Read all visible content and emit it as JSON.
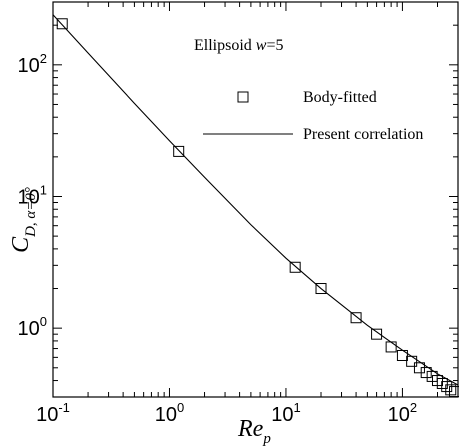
{
  "chart_data": {
    "type": "line",
    "x_scale": "log",
    "y_scale": "log",
    "xlim": [
      0.1,
      300
    ],
    "ylim": [
      0.3,
      300
    ],
    "annotation": {
      "text": "Ellipsoid ",
      "var": "w",
      "value": "=5"
    },
    "xlabel": {
      "main": "Re",
      "sub": "p"
    },
    "ylabel": {
      "main": "C",
      "sub": "D, α=0°"
    },
    "x_ticks": [
      {
        "value": 0.1,
        "base": "10",
        "exp": "-1"
      },
      {
        "value": 1,
        "base": "10",
        "exp": "0"
      },
      {
        "value": 10,
        "base": "10",
        "exp": "1"
      },
      {
        "value": 100,
        "base": "10",
        "exp": "2"
      }
    ],
    "y_ticks": [
      {
        "value": 1,
        "base": "10",
        "exp": "0"
      },
      {
        "value": 10,
        "base": "10",
        "exp": "1"
      },
      {
        "value": 100,
        "base": "10",
        "exp": "2"
      }
    ],
    "legend": {
      "position": "top-right"
    },
    "series": [
      {
        "name": "Body-fitted",
        "kind": "markers",
        "marker": "open-square",
        "points": [
          [
            0.12,
            205
          ],
          [
            1.2,
            22
          ],
          [
            12,
            2.9
          ],
          [
            20,
            2.0
          ],
          [
            40,
            1.2
          ],
          [
            60,
            0.9
          ],
          [
            80,
            0.72
          ],
          [
            100,
            0.62
          ],
          [
            120,
            0.56
          ],
          [
            140,
            0.5
          ],
          [
            160,
            0.46
          ],
          [
            180,
            0.43
          ],
          [
            200,
            0.4
          ],
          [
            220,
            0.38
          ],
          [
            240,
            0.36
          ],
          [
            260,
            0.34
          ],
          [
            280,
            0.33
          ]
        ]
      },
      {
        "name": "Present correlation",
        "kind": "line",
        "points": [
          [
            0.1,
            240
          ],
          [
            0.2,
            123
          ],
          [
            0.5,
            51
          ],
          [
            1,
            26.5
          ],
          [
            2,
            14
          ],
          [
            5,
            6.1
          ],
          [
            10,
            3.4
          ],
          [
            20,
            2.0
          ],
          [
            50,
            1.05
          ],
          [
            100,
            0.68
          ],
          [
            200,
            0.45
          ],
          [
            300,
            0.37
          ]
        ]
      }
    ]
  }
}
